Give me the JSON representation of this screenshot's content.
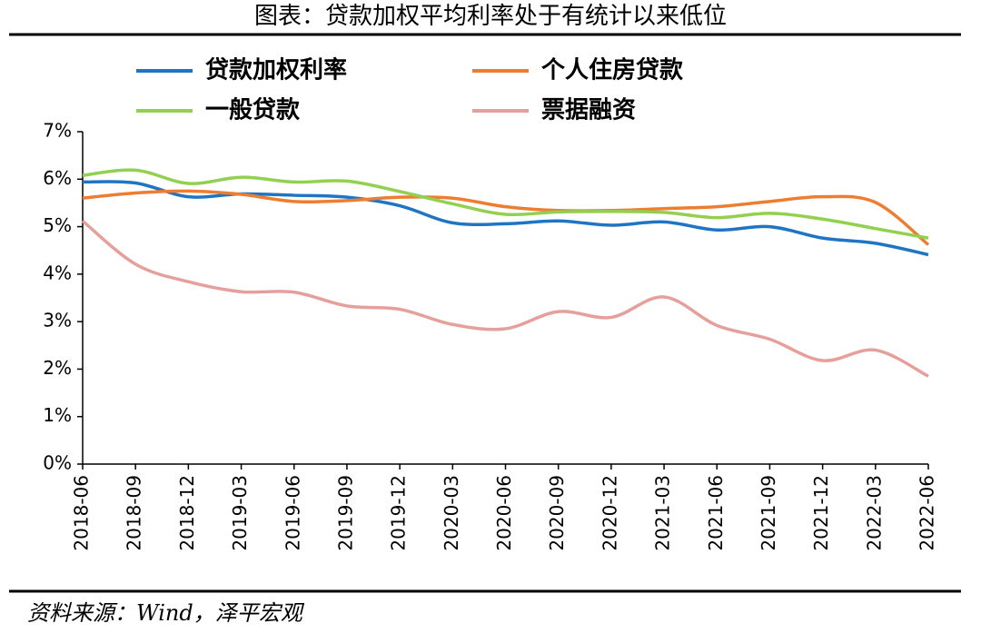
{
  "chart_data": {
    "type": "line",
    "title": "图表：贷款加权平均利率处于有统计以来低位",
    "source": "资料来源：Wind，泽平宏观",
    "categories": [
      "2018-06",
      "2018-09",
      "2018-12",
      "2019-03",
      "2019-06",
      "2019-09",
      "2019-12",
      "2020-03",
      "2020-06",
      "2020-09",
      "2020-12",
      "2021-03",
      "2021-06",
      "2021-09",
      "2021-12",
      "2022-03",
      "2022-06"
    ],
    "series": [
      {
        "name": "贷款加权利率",
        "color": "#1f75c4",
        "values": [
          5.94,
          5.92,
          5.63,
          5.69,
          5.66,
          5.62,
          5.44,
          5.08,
          5.06,
          5.12,
          5.03,
          5.1,
          4.93,
          5.0,
          4.76,
          4.65,
          4.41
        ]
      },
      {
        "name": "个人住房贷款",
        "color": "#ed7d31",
        "values": [
          5.6,
          5.71,
          5.75,
          5.68,
          5.53,
          5.55,
          5.62,
          5.6,
          5.42,
          5.34,
          5.34,
          5.38,
          5.42,
          5.53,
          5.63,
          5.51,
          4.62
        ]
      },
      {
        "name": "一般贷款",
        "color": "#92d050",
        "values": [
          6.08,
          6.19,
          5.91,
          6.04,
          5.94,
          5.96,
          5.74,
          5.48,
          5.26,
          5.31,
          5.32,
          5.3,
          5.19,
          5.28,
          5.16,
          4.96,
          4.76
        ]
      },
      {
        "name": "票据融资",
        "color": "#e6a09c",
        "values": [
          5.12,
          4.21,
          3.84,
          3.63,
          3.62,
          3.33,
          3.26,
          2.94,
          2.85,
          3.21,
          3.09,
          3.52,
          2.92,
          2.63,
          2.18,
          2.4,
          1.85
        ]
      }
    ],
    "ylim": [
      0,
      7
    ],
    "yticks": [
      {
        "value": 0,
        "label": "0%"
      },
      {
        "value": 1,
        "label": "1%"
      },
      {
        "value": 2,
        "label": "2%"
      },
      {
        "value": 3,
        "label": "3%"
      },
      {
        "value": 4,
        "label": "4%"
      },
      {
        "value": 5,
        "label": "5%"
      },
      {
        "value": 6,
        "label": "6%"
      },
      {
        "value": 7,
        "label": "7%"
      }
    ],
    "grid": false,
    "legend": "top"
  }
}
